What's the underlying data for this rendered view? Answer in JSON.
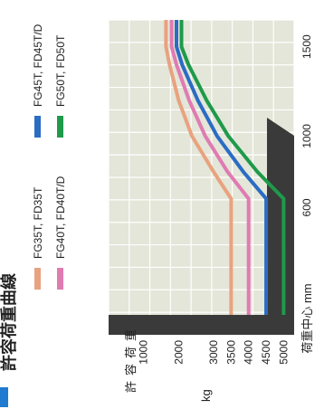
{
  "title": "許容荷重曲線",
  "chart_data": {
    "type": "line",
    "orientation": "rotated-90-ccw",
    "xlabel": "荷重中心 mm",
    "ylabel": "許容荷重",
    "yunit": "kg",
    "x_ticks": [
      600,
      1000,
      1500
    ],
    "y_ticks": [
      1000,
      2000,
      3000,
      3500,
      4000,
      4500,
      5000
    ],
    "xlim": [
      0,
      1650
    ],
    "ylim": [
      0,
      5300
    ],
    "grid": true,
    "legend_position": "top",
    "series": [
      {
        "name": "FG35T, FD35T",
        "color": "#e9a27f",
        "points": [
          [
            500,
            3500
          ],
          [
            650,
            3500
          ],
          [
            800,
            3000
          ],
          [
            1000,
            2380
          ],
          [
            1200,
            2000
          ],
          [
            1400,
            1740
          ],
          [
            1500,
            1640
          ]
        ]
      },
      {
        "name": "FG40T, FD40T/D",
        "color": "#e07bb2",
        "points": [
          [
            500,
            4000
          ],
          [
            650,
            4000
          ],
          [
            800,
            3400
          ],
          [
            1000,
            2760
          ],
          [
            1200,
            2300
          ],
          [
            1400,
            1940
          ],
          [
            1500,
            1800
          ]
        ]
      },
      {
        "name": "FG45T, FD45T/D",
        "color": "#2b6cc4",
        "points": [
          [
            500,
            4500
          ],
          [
            650,
            4500
          ],
          [
            800,
            3850
          ],
          [
            1000,
            3100
          ],
          [
            1200,
            2550
          ],
          [
            1400,
            2100
          ],
          [
            1500,
            1940
          ]
        ]
      },
      {
        "name": "FG50T, FD50T",
        "color": "#1e9a4a",
        "points": [
          [
            500,
            5000
          ],
          [
            650,
            5000
          ],
          [
            800,
            4250
          ],
          [
            1000,
            3420
          ],
          [
            1200,
            2800
          ],
          [
            1400,
            2280
          ],
          [
            1500,
            2080
          ]
        ]
      }
    ]
  }
}
